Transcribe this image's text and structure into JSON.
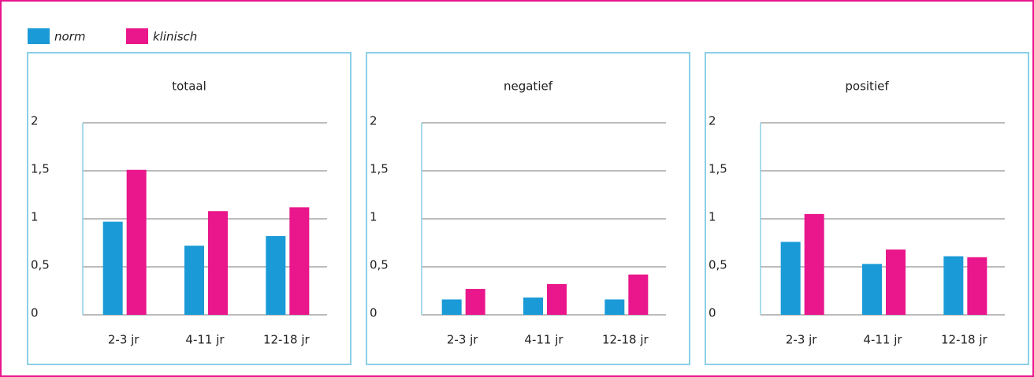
{
  "legend": [
    {
      "name": "norm",
      "color": "#1a9bd7"
    },
    {
      "name": "klinisch",
      "color": "#e9168c"
    }
  ],
  "chart_data": [
    {
      "type": "bar",
      "title": "totaal",
      "categories": [
        "2-3 jr",
        "4-11 jr",
        "12-18 jr"
      ],
      "series": [
        {
          "values": [
            0.97,
            0.72,
            0.82
          ]
        },
        {
          "values": [
            1.51,
            1.08,
            1.12
          ]
        }
      ],
      "ylim": [
        0,
        2
      ],
      "yticks": [
        0,
        {
          "value": 0.5,
          "label": "0,5"
        },
        1,
        {
          "value": 1.5,
          "label": "1,5"
        },
        2
      ],
      "grid": true
    },
    {
      "type": "bar",
      "title": "negatief",
      "categories": [
        "2-3 jr",
        "4-11 jr",
        "12-18 jr"
      ],
      "series": [
        {
          "values": [
            0.16,
            0.18,
            0.16
          ]
        },
        {
          "values": [
            0.27,
            0.32,
            0.42
          ]
        }
      ],
      "ylim": [
        0,
        2
      ],
      "yticks": [
        0,
        {
          "value": 0.5,
          "label": "0,5"
        },
        1,
        {
          "value": 1.5,
          "label": "1,5"
        },
        2
      ],
      "grid": true
    },
    {
      "type": "bar",
      "title": "positief",
      "categories": [
        "2-3 jr",
        "4-11 jr",
        "12-18 jr"
      ],
      "series": [
        {
          "values": [
            0.76,
            0.53,
            0.61
          ]
        },
        {
          "values": [
            1.05,
            0.68,
            0.6
          ]
        }
      ],
      "ylim": [
        0,
        2
      ],
      "yticks": [
        0,
        {
          "value": 0.5,
          "label": "0,5"
        },
        1,
        {
          "value": 1.5,
          "label": "1,5"
        },
        2
      ],
      "grid": true
    }
  ]
}
